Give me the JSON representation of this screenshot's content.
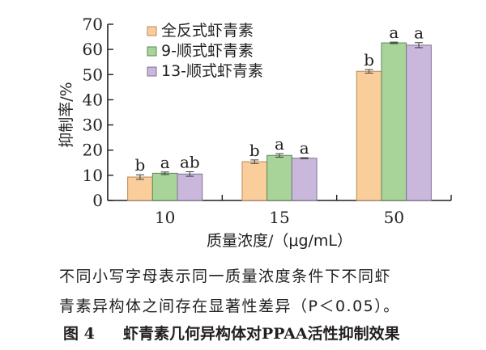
{
  "chart_data": {
    "type": "bar",
    "title": "",
    "xlabel": "质量浓度/（μg/mL）",
    "ylabel": "抑制率/%",
    "ylim": [
      0,
      70
    ],
    "yticks": [
      0,
      10,
      20,
      30,
      40,
      50,
      60,
      70
    ],
    "categories": [
      "10",
      "15",
      "50"
    ],
    "grid": false,
    "legend_position": "upper-left",
    "series": [
      {
        "name": "全反式虾青素",
        "color": "#F9CE9A",
        "border": "#B88A56",
        "values": [
          9.3,
          15.4,
          51.3
        ],
        "errors": [
          0.9,
          0.7,
          0.7
        ],
        "letters": [
          "b",
          "b",
          "b"
        ]
      },
      {
        "name": "9-顺式虾青素",
        "color": "#A8D49A",
        "border": "#5E8A55",
        "values": [
          10.8,
          17.9,
          62.6
        ],
        "errors": [
          0.5,
          0.7,
          0.3
        ],
        "letters": [
          "a",
          "a",
          "a"
        ]
      },
      {
        "name": "13-顺式虾青素",
        "color": "#C9B8DC",
        "border": "#7F7193",
        "values": [
          10.5,
          16.8,
          61.7
        ],
        "errors": [
          0.9,
          0.2,
          1.0
        ],
        "letters": [
          "ab",
          "a",
          "a"
        ]
      }
    ]
  },
  "caption": {
    "note_line1": "不同小写字母表示同一质量浓度条件下不同虾",
    "note_line2": "青素异构体之间存在显著性差异（P＜0.05）。",
    "figure_number": "图 4",
    "figure_title": "虾青素几何异构体对PPAA活性抑制效果"
  }
}
